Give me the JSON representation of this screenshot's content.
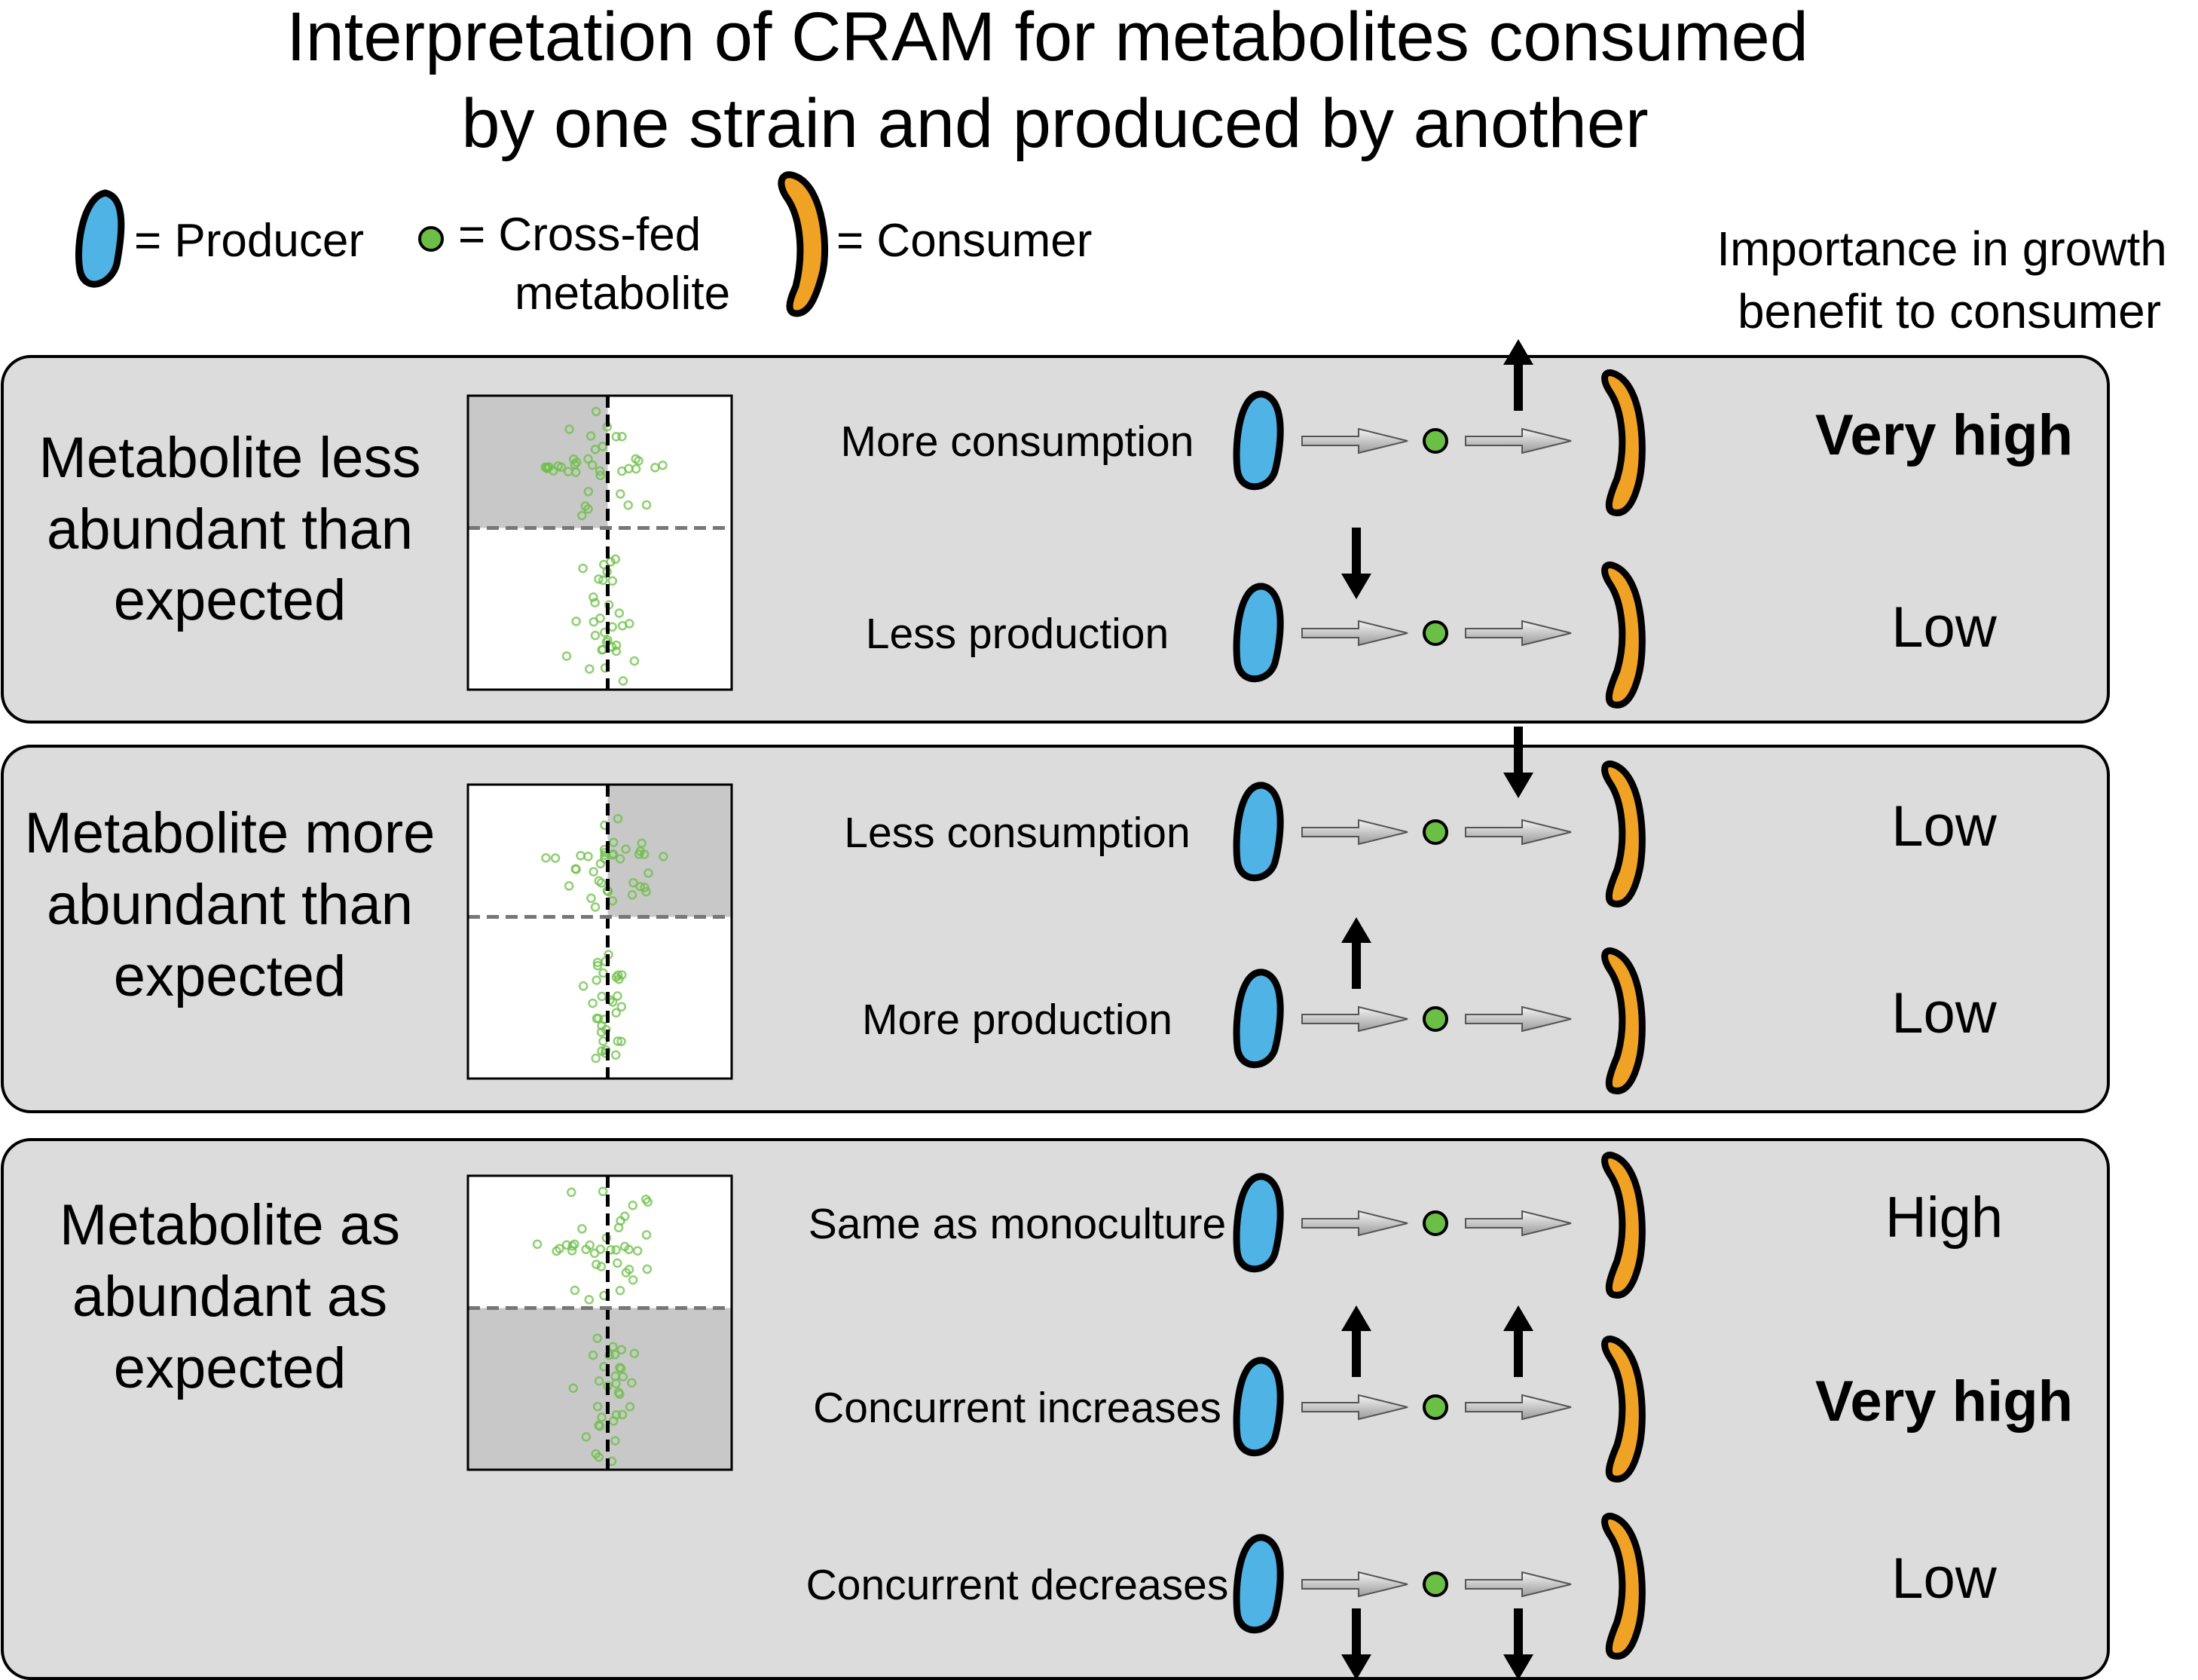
{
  "title": {
    "line1": "Interpretation of CRAM for metabolites consumed",
    "line2": "by one strain and produced by another"
  },
  "legend": {
    "producer": "= Producer",
    "metabolite_line1": "= Cross-fed",
    "metabolite_line2": "metabolite",
    "consumer": "= Consumer"
  },
  "importance_header": {
    "line1": "Importance in growth",
    "line2": "benefit to consumer"
  },
  "colors": {
    "producer": "#4fb3e6",
    "consumer": "#f0a224",
    "metabolite": "#6bbf45",
    "panel": "#dcdcdc",
    "shade": "#c8c8c8",
    "arrow": "#b5b5b5"
  },
  "panels": [
    {
      "category": [
        "Metabolite less",
        "abundant than",
        "expected"
      ],
      "shade": "top-left",
      "rows": [
        {
          "label": "More consumption",
          "importance": "Very high",
          "bold": true,
          "producer_arrow": "none",
          "consumer_arrow": "up"
        },
        {
          "label": "Less production",
          "importance": "Low",
          "bold": false,
          "producer_arrow": "down",
          "consumer_arrow": "none"
        }
      ]
    },
    {
      "category": [
        "Metabolite more",
        "abundant than",
        "expected"
      ],
      "shade": "top-right",
      "rows": [
        {
          "label": "Less consumption",
          "importance": "Low",
          "bold": false,
          "producer_arrow": "none",
          "consumer_arrow": "down"
        },
        {
          "label": "More production",
          "importance": "Low",
          "bold": false,
          "producer_arrow": "up",
          "consumer_arrow": "none"
        }
      ]
    },
    {
      "category": [
        "Metabolite as",
        "abundant as",
        "expected"
      ],
      "shade": "bottom",
      "rows": [
        {
          "label": "Same as monoculture",
          "importance": "High",
          "bold": false,
          "producer_arrow": "none",
          "consumer_arrow": "none"
        },
        {
          "label": "Concurrent increases",
          "importance": "Very high",
          "bold": true,
          "producer_arrow": "up",
          "consumer_arrow": "up"
        },
        {
          "label": "Concurrent decreases",
          "importance": "Low",
          "bold": false,
          "producer_arrow": "down-below",
          "consumer_arrow": "down-below"
        }
      ]
    }
  ]
}
